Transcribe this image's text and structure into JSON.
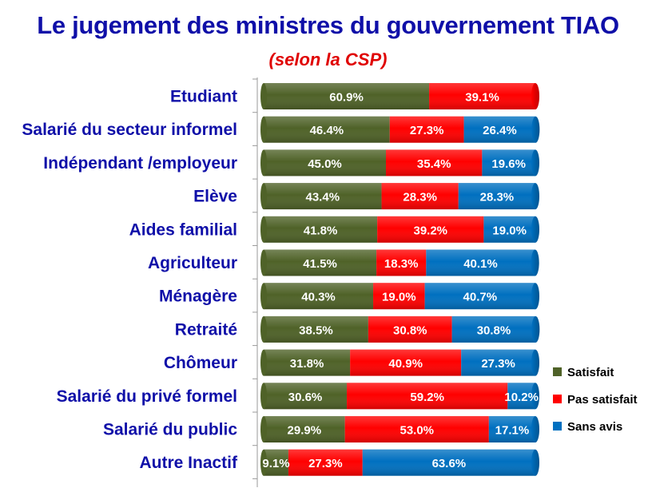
{
  "chart_data": {
    "type": "bar",
    "orientation": "horizontal",
    "stacked": "percent",
    "title": "Le jugement des ministres du gouvernement TIAO",
    "subtitle": "(selon la CSP)",
    "categories": [
      "Etudiant",
      "Salarié du secteur informel",
      "Indépendant /employeur",
      "Elève",
      "Aides familial",
      "Agriculteur",
      "Ménagère",
      "Retraité",
      "Chômeur",
      "Salarié du privé formel",
      "Salarié du public",
      "Autre Inactif"
    ],
    "series": [
      {
        "name": "Satisfait",
        "color": "#4f6228",
        "values": [
          60.9,
          46.4,
          45.0,
          43.4,
          41.8,
          41.5,
          40.3,
          38.5,
          31.8,
          30.6,
          29.9,
          9.1
        ]
      },
      {
        "name": "Pas satisfait",
        "color": "#ff0000",
        "values": [
          39.1,
          27.3,
          35.4,
          28.3,
          39.2,
          18.3,
          19.0,
          30.8,
          40.9,
          59.2,
          53.0,
          27.3
        ]
      },
      {
        "name": "Sans avis",
        "color": "#0070c0",
        "values": [
          0,
          26.4,
          19.6,
          28.3,
          19.0,
          40.1,
          40.7,
          30.8,
          27.3,
          10.2,
          17.1,
          63.6
        ]
      }
    ],
    "labels": [
      [
        "60.9%",
        "39.1%",
        ""
      ],
      [
        "46.4%",
        "27.3%",
        "26.4%"
      ],
      [
        "45.0%",
        "35.4%",
        "19.6%"
      ],
      [
        "43.4%",
        "28.3%",
        "28.3%"
      ],
      [
        "41.8%",
        "39.2%",
        "19.0%"
      ],
      [
        "41.5%",
        "18.3%",
        "40.1%"
      ],
      [
        "40.3%",
        "19.0%",
        "40.7%"
      ],
      [
        "38.5%",
        "30.8%",
        "30.8%"
      ],
      [
        "31.8%",
        "40.9%",
        "27.3%"
      ],
      [
        "30.6%",
        "59.2%",
        "10.2%"
      ],
      [
        "29.9%",
        "53.0%",
        "17.1%"
      ],
      [
        "9.1%",
        "27.3%",
        "63.6%"
      ]
    ],
    "xlim": [
      0,
      100
    ],
    "legend": "right"
  }
}
